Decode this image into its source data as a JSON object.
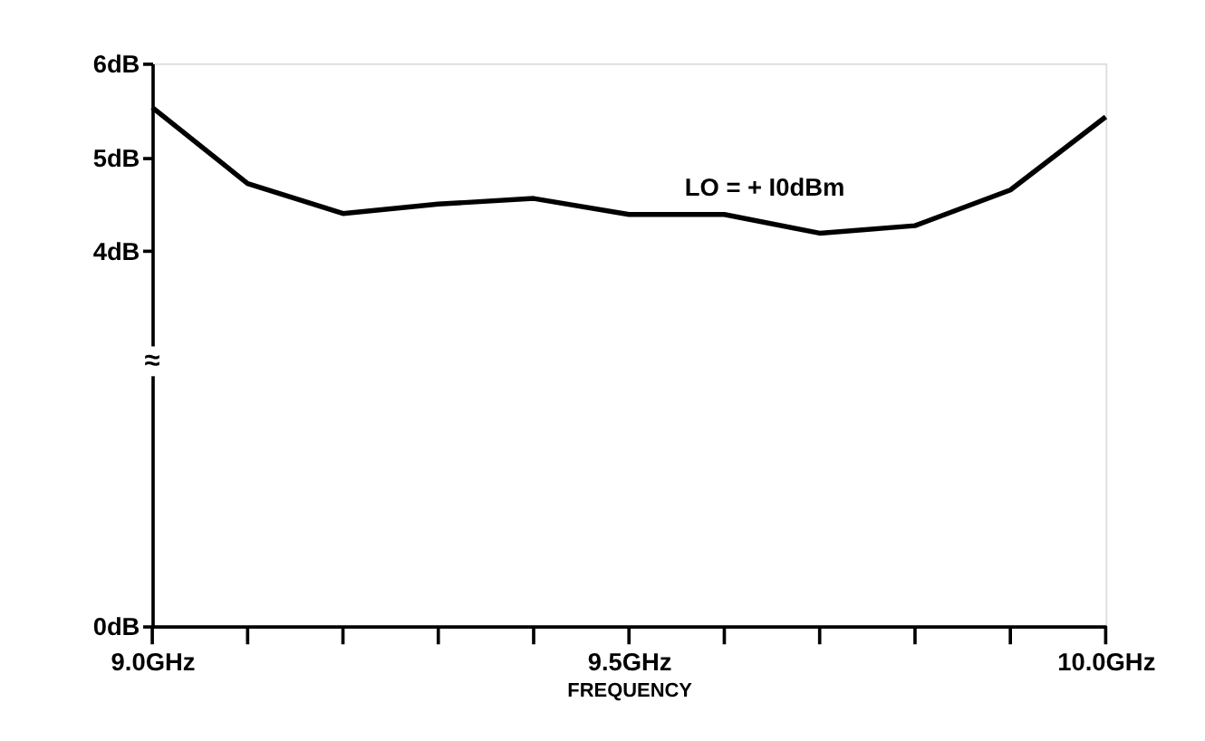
{
  "chart_data": {
    "type": "line",
    "xlabel": "FREQUENCY",
    "x": [
      9.0,
      9.1,
      9.2,
      9.3,
      9.4,
      9.5,
      9.6,
      9.7,
      9.8,
      9.9,
      10.0
    ],
    "series": [
      {
        "color": "#000000",
        "values": [
          5.53,
          4.72,
          4.4,
          4.5,
          4.56,
          4.39,
          4.39,
          4.19,
          4.27,
          4.65,
          5.43
        ]
      }
    ],
    "xlim": [
      9.0,
      10.0
    ],
    "xticks": [
      {
        "value": 9.0,
        "label": "9.0GHz"
      },
      {
        "value": 9.1,
        "label": null
      },
      {
        "value": 9.2,
        "label": null
      },
      {
        "value": 9.3,
        "label": null
      },
      {
        "value": 9.4,
        "label": null
      },
      {
        "value": 9.5,
        "label": "9.5GHz"
      },
      {
        "value": 9.6,
        "label": null
      },
      {
        "value": 9.7,
        "label": null
      },
      {
        "value": 9.8,
        "label": null
      },
      {
        "value": 9.9,
        "label": null
      },
      {
        "value": 10.0,
        "label": "10.0GHz"
      }
    ],
    "ylim": [
      0,
      6
    ],
    "yticks": [
      {
        "value": 0,
        "label": "0dB"
      },
      {
        "value": 4,
        "label": "4dB"
      },
      {
        "value": 5,
        "label": "5dB"
      },
      {
        "value": 6,
        "label": "6dB"
      }
    ],
    "annotations": [
      "LO = + I0dBm",
      "≈"
    ],
    "grid": false,
    "marker": "none",
    "line_style": "solid"
  }
}
